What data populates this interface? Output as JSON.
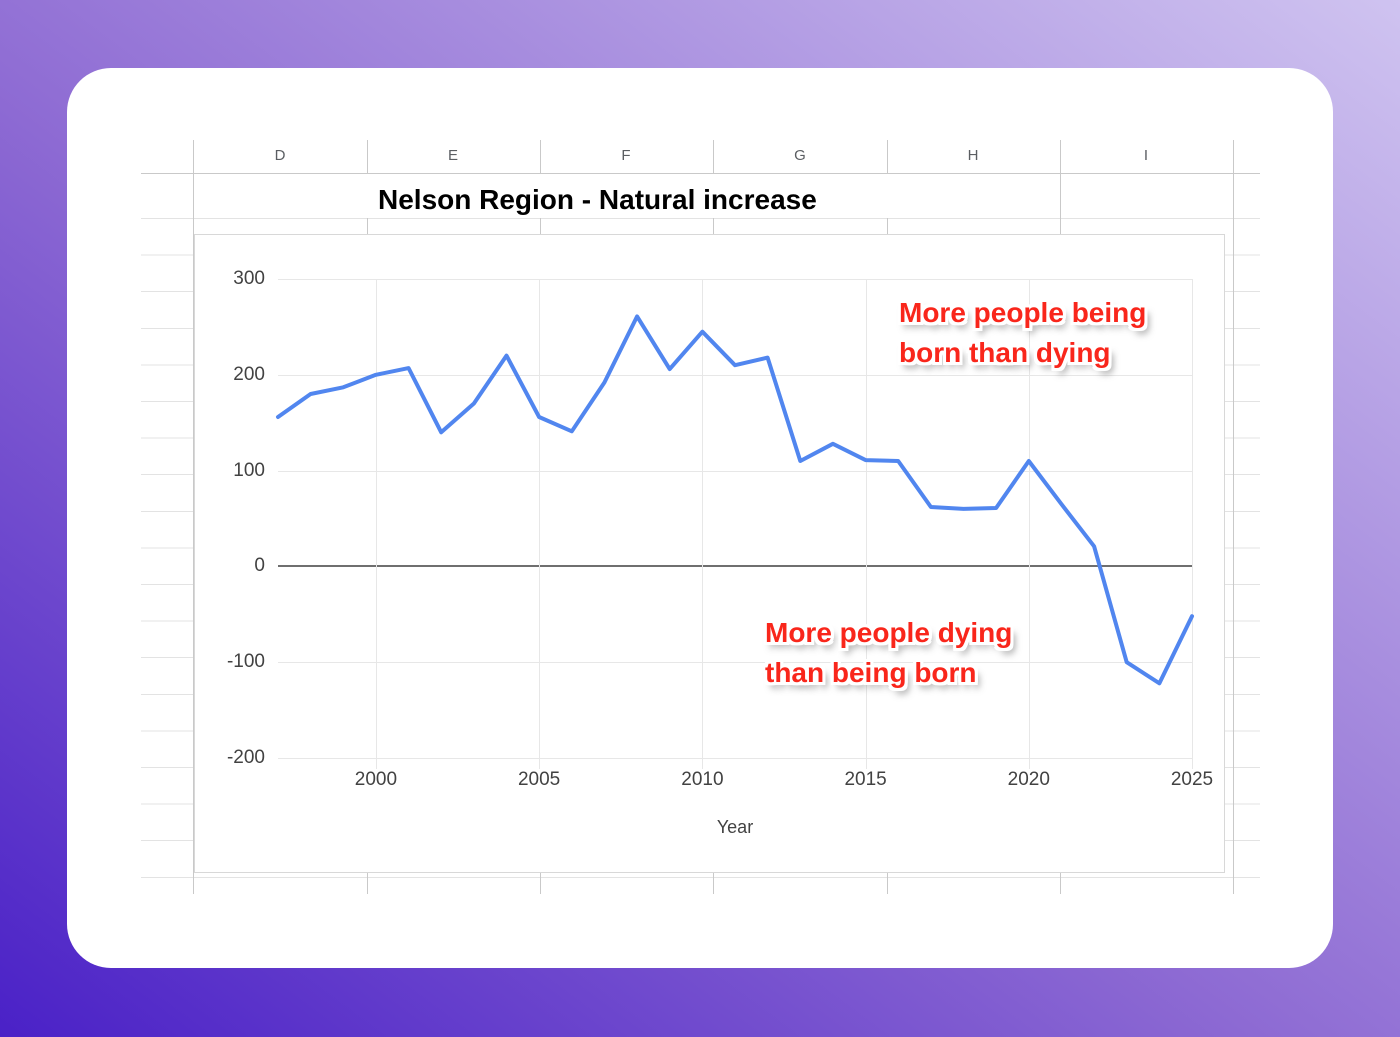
{
  "sheet": {
    "column_headers": [
      "D",
      "E",
      "F",
      "G",
      "H",
      "I"
    ],
    "title": "Nelson Region - Natural increase"
  },
  "chart_data": {
    "type": "line",
    "title": "Nelson Region - Natural increase",
    "xlabel": "Year",
    "ylabel": "",
    "x": [
      1997,
      1998,
      1999,
      2000,
      2001,
      2002,
      2003,
      2004,
      2005,
      2006,
      2007,
      2008,
      2009,
      2010,
      2011,
      2012,
      2013,
      2014,
      2015,
      2016,
      2017,
      2018,
      2019,
      2020,
      2021,
      2022,
      2023,
      2024,
      2025
    ],
    "values": [
      156,
      180,
      187,
      200,
      207,
      140,
      170,
      220,
      156,
      141,
      192,
      261,
      206,
      245,
      210,
      218,
      110,
      128,
      111,
      110,
      62,
      60,
      61,
      110,
      65,
      21,
      -100,
      -122,
      -52
    ],
    "x_ticks": [
      2000,
      2005,
      2010,
      2015,
      2020,
      2025
    ],
    "y_ticks": [
      300,
      200,
      100,
      0,
      -100,
      -200
    ],
    "xlim": [
      1997,
      2025
    ],
    "ylim": [
      -200,
      300
    ],
    "grid": true,
    "legend_position": "none",
    "line_color": "#5186ef",
    "zero_axis_color": "#6f6f6f",
    "gridline_color": "#e7e7e7",
    "annotation_color": "#f9261b",
    "annotations": [
      {
        "lines": [
          "More people being",
          "born than dying"
        ],
        "color": "#f9261b",
        "placement": "upper-right-above-zero"
      },
      {
        "lines": [
          "More people dying",
          "than being born"
        ],
        "color": "#f9261b",
        "placement": "lower-middle-below-zero"
      }
    ]
  }
}
